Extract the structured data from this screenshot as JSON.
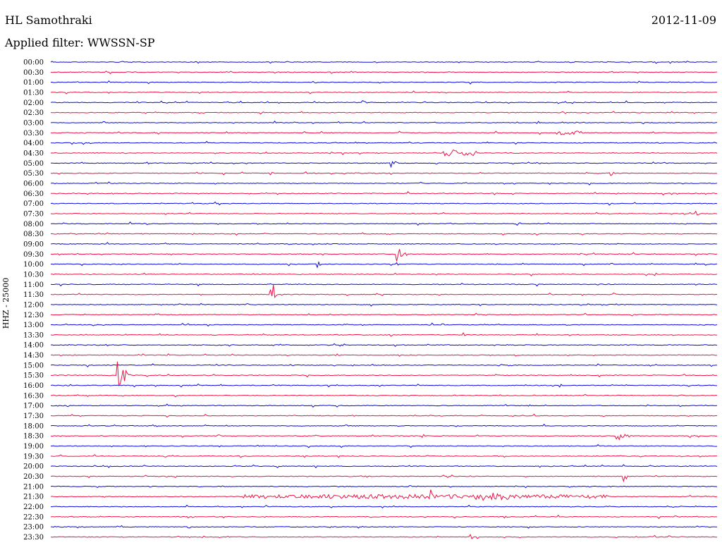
{
  "header": {
    "station": "HL Samothraki",
    "date": "2012-11-09",
    "filter": "Applied filter: WWSSN-SP"
  },
  "chart_data": {
    "type": "line",
    "title": "HL Samothraki",
    "ylabel": "HHZ - 25000",
    "colors": {
      "even": "#0a0ad8",
      "odd": "#ee1144"
    },
    "rows": [
      {
        "label": "00:00",
        "events": []
      },
      {
        "label": "00:30",
        "events": [
          {
            "t": 0.27,
            "amp": 2
          }
        ]
      },
      {
        "label": "01:00",
        "events": []
      },
      {
        "label": "01:30",
        "events": []
      },
      {
        "label": "02:00",
        "events": [
          {
            "t": 0.47,
            "amp": 3
          }
        ]
      },
      {
        "label": "02:30",
        "events": []
      },
      {
        "label": "03:00",
        "events": [
          {
            "t": 0.08,
            "amp": 3
          },
          {
            "t": 0.73,
            "amp": 3
          }
        ]
      },
      {
        "label": "03:30",
        "events": [
          {
            "t": 0.76,
            "amp": 3,
            "dur": 0.04
          }
        ]
      },
      {
        "label": "04:00",
        "events": []
      },
      {
        "label": "04:30",
        "events": [
          {
            "t": 0.59,
            "amp": 5,
            "dur": 0.05
          }
        ]
      },
      {
        "label": "05:00",
        "events": [
          {
            "t": 0.51,
            "amp": 7,
            "dur": 0.01
          }
        ]
      },
      {
        "label": "05:30",
        "events": [
          {
            "t": 0.26,
            "amp": 3
          },
          {
            "t": 0.33,
            "amp": 3
          },
          {
            "t": 0.84,
            "amp": 6
          }
        ]
      },
      {
        "label": "06:00",
        "events": []
      },
      {
        "label": "06:30",
        "events": []
      },
      {
        "label": "07:00",
        "events": []
      },
      {
        "label": "07:30",
        "events": [
          {
            "t": 0.97,
            "amp": 4
          }
        ]
      },
      {
        "label": "08:00",
        "events": []
      },
      {
        "label": "08:30",
        "events": []
      },
      {
        "label": "09:00",
        "events": [
          {
            "t": 0.67,
            "amp": 3
          }
        ]
      },
      {
        "label": "09:30",
        "events": [
          {
            "t": 0.52,
            "amp": 11,
            "dur": 0.02
          }
        ]
      },
      {
        "label": "10:00",
        "events": [
          {
            "t": 0.4,
            "amp": 7
          }
        ]
      },
      {
        "label": "10:30",
        "events": []
      },
      {
        "label": "11:00",
        "events": []
      },
      {
        "label": "11:30",
        "events": [
          {
            "t": 0.33,
            "amp": 32,
            "dur": 0.01
          }
        ]
      },
      {
        "label": "12:00",
        "events": []
      },
      {
        "label": "12:30",
        "events": []
      },
      {
        "label": "13:00",
        "events": []
      },
      {
        "label": "13:30",
        "events": [
          {
            "t": 0.62,
            "amp": 3
          }
        ]
      },
      {
        "label": "14:00",
        "events": []
      },
      {
        "label": "14:30",
        "events": []
      },
      {
        "label": "15:00",
        "events": []
      },
      {
        "label": "15:30",
        "events": [
          {
            "t": 0.1,
            "amp": 22,
            "dur": 0.02
          }
        ]
      },
      {
        "label": "16:00",
        "events": []
      },
      {
        "label": "16:30",
        "events": []
      },
      {
        "label": "17:00",
        "events": []
      },
      {
        "label": "17:30",
        "events": []
      },
      {
        "label": "18:00",
        "events": []
      },
      {
        "label": "18:30",
        "events": [
          {
            "t": 0.85,
            "amp": 9,
            "dur": 0.02
          }
        ]
      },
      {
        "label": "19:00",
        "events": []
      },
      {
        "label": "19:30",
        "events": []
      },
      {
        "label": "20:00",
        "events": []
      },
      {
        "label": "20:30",
        "events": [
          {
            "t": 0.86,
            "amp": 12,
            "dur": 0.01
          }
        ]
      },
      {
        "label": "21:00",
        "events": []
      },
      {
        "label": "21:30",
        "events": [
          {
            "t": 0.29,
            "amp": 3,
            "dur": 0.55
          },
          {
            "t": 0.57,
            "amp": 12
          },
          {
            "t": 0.64,
            "amp": 6,
            "dur": 0.05
          }
        ]
      },
      {
        "label": "22:00",
        "events": []
      },
      {
        "label": "22:30",
        "events": [
          {
            "t": 0.68,
            "amp": 4
          }
        ]
      },
      {
        "label": "23:00",
        "events": []
      },
      {
        "label": "23:30",
        "events": [
          {
            "t": 0.63,
            "amp": 6
          }
        ]
      }
    ]
  }
}
